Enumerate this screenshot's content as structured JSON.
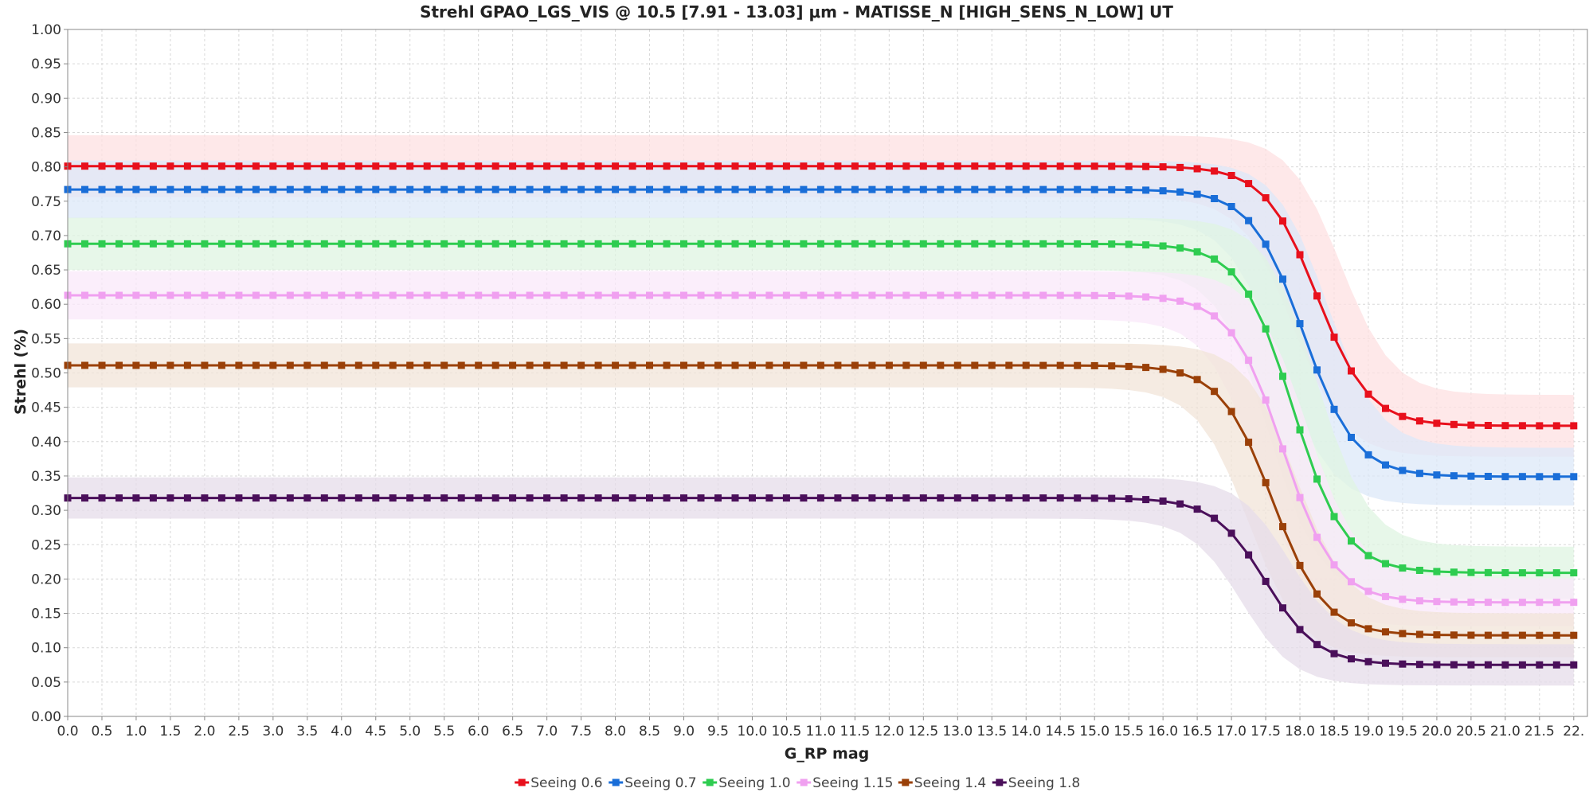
{
  "chart_data": {
    "type": "line",
    "title": "Strehl GPAO_LGS_VIS @ 10.5 [7.91 - 13.03] μm - MATISSE_N [HIGH_SENS_N_LOW] UT",
    "xlabel": "G_RP mag",
    "ylabel": "Strehl (%)",
    "xlim": [
      0,
      22.2
    ],
    "ylim": [
      0,
      1.0
    ],
    "x_ticks": [
      "0.0",
      "0.5",
      "1.0",
      "1.5",
      "2.0",
      "2.5",
      "3.0",
      "3.5",
      "4.0",
      "4.5",
      "5.0",
      "5.5",
      "6.0",
      "6.5",
      "7.0",
      "7.5",
      "8.0",
      "8.5",
      "9.0",
      "9.5",
      "10.0",
      "10.5",
      "11.0",
      "11.5",
      "12.0",
      "12.5",
      "13.0",
      "13.5",
      "14.0",
      "14.5",
      "15.0",
      "15.5",
      "16.0",
      "16.5",
      "17.0",
      "17.5",
      "18.0",
      "18.5",
      "19.0",
      "19.5",
      "20.0",
      "20.5",
      "21.0",
      "21.5",
      "22."
    ],
    "y_ticks": [
      "0.00",
      "0.05",
      "0.10",
      "0.15",
      "0.20",
      "0.25",
      "0.30",
      "0.35",
      "0.40",
      "0.45",
      "0.50",
      "0.55",
      "0.60",
      "0.65",
      "0.70",
      "0.75",
      "0.80",
      "0.85",
      "0.90",
      "0.95",
      "1.00"
    ],
    "grid": true,
    "legend_position": "bottom",
    "x_step": 0.25,
    "series": [
      {
        "name": "Seeing 0.6",
        "color": "#e8101c",
        "band": "#fde0e2",
        "low": 0.423,
        "high": 0.801,
        "mid": 18.25,
        "width": 0.38,
        "band_width": 0.045
      },
      {
        "name": "Seeing 0.7",
        "color": "#1a6ed8",
        "band": "#dce8f8",
        "low": 0.349,
        "high": 0.767,
        "mid": 18.05,
        "width": 0.38,
        "band_width": 0.042
      },
      {
        "name": "Seeing 1.0",
        "color": "#2ecc50",
        "band": "#dff4e2",
        "low": 0.209,
        "high": 0.688,
        "mid": 17.9,
        "width": 0.38,
        "band_width": 0.038
      },
      {
        "name": "Seeing 1.15",
        "color": "#f0a0f0",
        "band": "#f9e8fa",
        "low": 0.166,
        "high": 0.613,
        "mid": 17.75,
        "width": 0.38,
        "band_width": 0.035
      },
      {
        "name": "Seeing 1.4",
        "color": "#9a4008",
        "band": "#f2e4d8",
        "low": 0.118,
        "high": 0.511,
        "mid": 17.6,
        "width": 0.38,
        "band_width": 0.032
      },
      {
        "name": "Seeing 1.8",
        "color": "#4a0f5a",
        "band": "#e6dcea",
        "low": 0.075,
        "high": 0.318,
        "mid": 17.5,
        "width": 0.38,
        "band_width": 0.03
      }
    ]
  }
}
